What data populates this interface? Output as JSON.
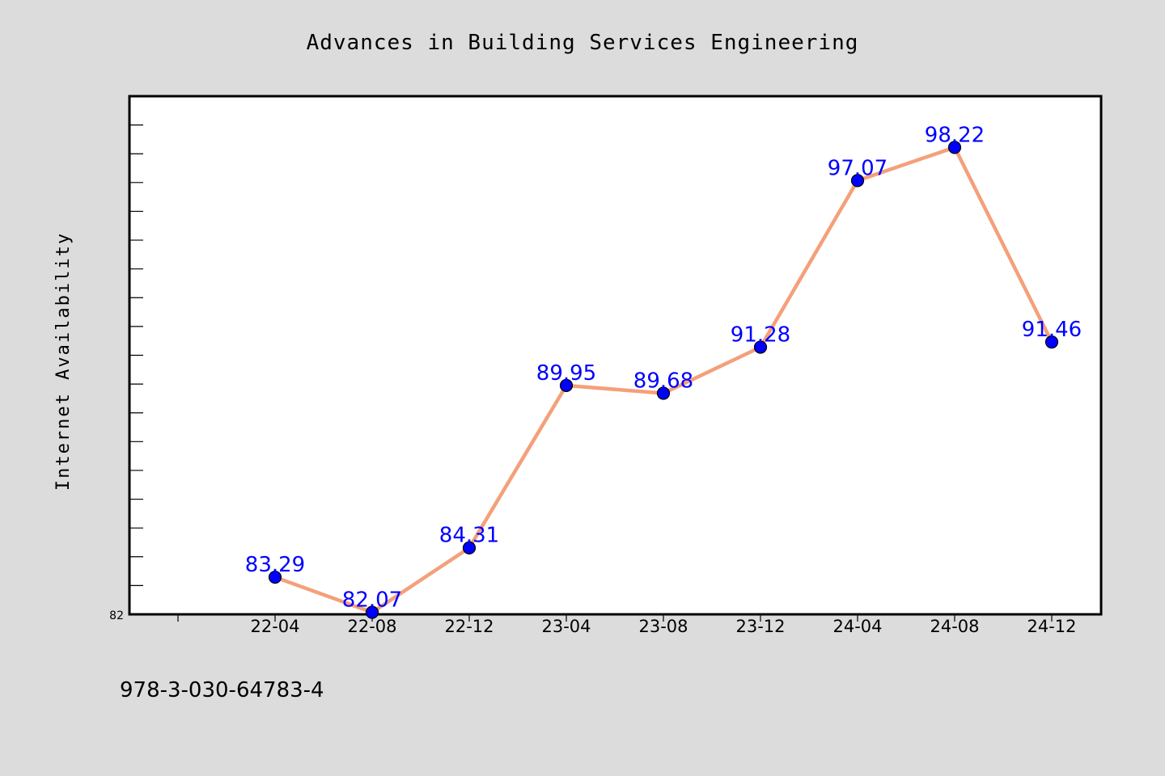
{
  "chart_data": {
    "type": "line",
    "title": "Advances in Building Services Engineering",
    "ylabel": "Internet Availability",
    "xlabel": "",
    "categories": [
      "22-04",
      "22-08",
      "22-12",
      "23-04",
      "23-08",
      "23-12",
      "24-04",
      "24-08",
      "24-12"
    ],
    "series": [
      {
        "values": [
          83.29,
          82.07,
          84.31,
          89.95,
          89.68,
          91.28,
          97.07,
          98.22,
          91.46
        ],
        "labels": [
          "83.29",
          "82.07",
          "84.31",
          "89.95",
          "89.68",
          "91.28",
          "97.07",
          "98.22",
          "91.46"
        ],
        "line_color": "#f4a07a",
        "marker_color": "#0000ff"
      }
    ],
    "ylim": [
      82,
      100
    ],
    "ytick_labels": [
      "82"
    ],
    "grid": false,
    "legend": "none"
  },
  "footer": {
    "isbn": "978-3-030-64783-4"
  },
  "colors": {
    "background": "#dcdcdc",
    "plot_background": "#ffffff",
    "label_color": "#0000ff"
  }
}
